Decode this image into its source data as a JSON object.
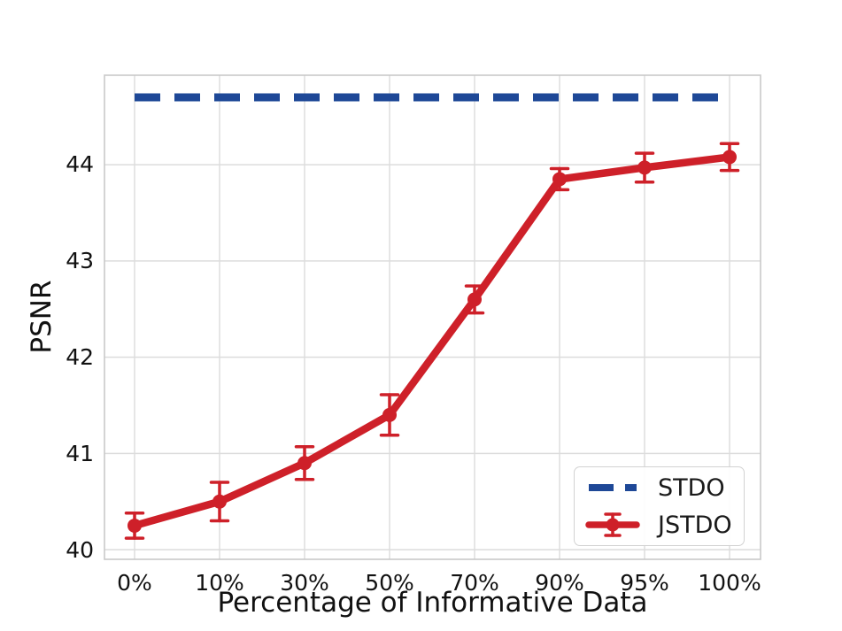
{
  "chart_data": {
    "type": "line",
    "title": "",
    "xlabel": "Percentage of Informative Data",
    "ylabel": "PSNR",
    "categories": [
      "0%",
      "10%",
      "30%",
      "50%",
      "70%",
      "90%",
      "95%",
      "100%"
    ],
    "yticks": [
      44,
      43,
      42,
      41,
      40
    ],
    "ylim": [
      39.9,
      44.93
    ],
    "grid": true,
    "legend_position": "lower right",
    "series": [
      {
        "name": "STDO",
        "type": "hline",
        "style": "dashed",
        "value": 44.7,
        "color": "#1e4897"
      },
      {
        "name": "JSTDO",
        "type": "line_with_errorbars",
        "color": "#ce2029",
        "values": [
          40.25,
          40.5,
          40.9,
          41.4,
          42.6,
          43.85,
          43.97,
          44.08
        ],
        "errors": [
          0.13,
          0.2,
          0.17,
          0.21,
          0.14,
          0.11,
          0.15,
          0.14
        ]
      }
    ],
    "colors": {
      "grid": "#dcdcdc",
      "spine": "#c9c9c9",
      "text": "#1a1a1a"
    }
  }
}
